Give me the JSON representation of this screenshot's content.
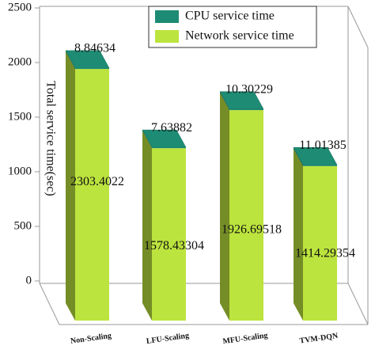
{
  "chart_data": {
    "type": "bar3d",
    "y_label": "Total service time(sec)",
    "categories": [
      "Non-Scaling",
      "LFU-Scaling",
      "MFU-Scaling",
      "TVM-DQN"
    ],
    "series": [
      {
        "name": "Network service time",
        "color": "#bce43e",
        "values": [
          2303.4022,
          1578.43304,
          1926.69518,
          1414.29354
        ]
      },
      {
        "name": "CPU service time",
        "color": "#1e8c74",
        "values": [
          8.84634,
          7.63882,
          10.30229,
          11.01385
        ]
      }
    ],
    "ylim": [
      0,
      2500
    ],
    "yticks": [
      0,
      500,
      1000,
      1500,
      2000,
      2500
    ],
    "stacked": true,
    "grid": false,
    "legend": "top-right"
  }
}
